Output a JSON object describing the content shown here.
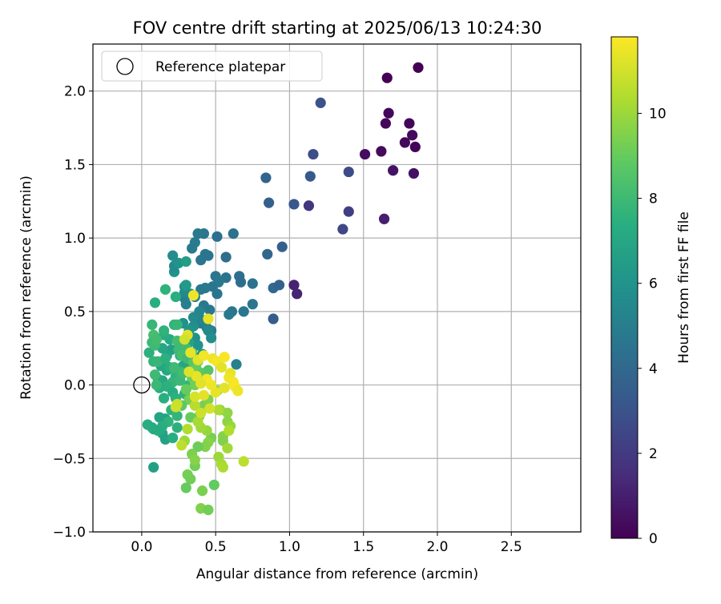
{
  "chart_data": {
    "type": "scatter",
    "title": "FOV centre drift starting at 2025/06/13 10:24:30",
    "xlabel": "Angular distance from reference (arcmin)",
    "ylabel": "Rotation from reference (arcmin)",
    "xlim": [
      -0.33,
      2.97
    ],
    "ylim": [
      -1.0,
      2.32
    ],
    "x_ticks": [
      "0.0",
      "0.5",
      "1.0",
      "1.5",
      "2.0",
      "2.5"
    ],
    "y_ticks": [
      "−1.0",
      "−0.5",
      "0.0",
      "0.5",
      "1.0",
      "1.5",
      "2.0"
    ],
    "grid": true,
    "legend": {
      "placement": "top-left",
      "entries": [
        "Reference platepar"
      ]
    },
    "reference_point": {
      "x": 0.0,
      "y": 0.0
    },
    "colorbar": {
      "label": "Hours from first FF file",
      "colormap": "viridis",
      "range": [
        0,
        11.8
      ],
      "ticks": [
        "0",
        "2",
        "4",
        "6",
        "8",
        "10"
      ]
    },
    "series": [
      {
        "points": [
          [
            1.87,
            2.16,
            0.0
          ],
          [
            1.66,
            2.09,
            0.0
          ],
          [
            1.67,
            1.85,
            0.2
          ],
          [
            1.81,
            1.78,
            0.1
          ],
          [
            1.65,
            1.78,
            0.2
          ],
          [
            1.83,
            1.7,
            0.3
          ],
          [
            1.78,
            1.65,
            0.2
          ],
          [
            1.85,
            1.62,
            0.1
          ],
          [
            1.51,
            1.57,
            0.4
          ],
          [
            1.62,
            1.59,
            0.3
          ],
          [
            1.7,
            1.46,
            0.6
          ],
          [
            1.84,
            1.44,
            0.5
          ],
          [
            1.64,
            1.13,
            1.0
          ],
          [
            1.03,
            0.68,
            1.1
          ],
          [
            1.05,
            0.62,
            1.2
          ],
          [
            1.13,
            1.22,
            1.8
          ],
          [
            1.4,
            1.18,
            2.2
          ],
          [
            1.36,
            1.06,
            2.5
          ],
          [
            1.4,
            1.45,
            2.7
          ],
          [
            1.16,
            1.57,
            2.8
          ],
          [
            1.21,
            1.92,
            3.0
          ],
          [
            1.14,
            1.42,
            3.3
          ],
          [
            1.03,
            1.23,
            3.2
          ],
          [
            0.86,
            1.24,
            3.6
          ],
          [
            0.84,
            1.41,
            3.8
          ],
          [
            0.85,
            0.89,
            3.9
          ],
          [
            0.95,
            0.94,
            3.6
          ],
          [
            0.89,
            0.66,
            4.0
          ],
          [
            0.93,
            0.68,
            3.7
          ],
          [
            0.89,
            0.45,
            3.4
          ],
          [
            0.62,
            1.03,
            4.4
          ],
          [
            0.57,
            0.87,
            4.2
          ],
          [
            0.51,
            1.01,
            4.3
          ],
          [
            0.42,
            1.03,
            4.6
          ],
          [
            0.38,
            1.03,
            4.8
          ],
          [
            0.36,
            0.97,
            4.9
          ],
          [
            0.34,
            0.93,
            4.8
          ],
          [
            0.43,
            0.89,
            4.5
          ],
          [
            0.4,
            0.85,
            4.6
          ],
          [
            0.45,
            0.88,
            4.5
          ],
          [
            0.66,
            0.74,
            4.3
          ],
          [
            0.67,
            0.7,
            4.2
          ],
          [
            0.75,
            0.69,
            4.4
          ],
          [
            0.57,
            0.73,
            4.5
          ],
          [
            0.5,
            0.74,
            4.6
          ],
          [
            0.52,
            0.7,
            4.7
          ],
          [
            0.48,
            0.67,
            4.6
          ],
          [
            0.43,
            0.66,
            4.8
          ],
          [
            0.4,
            0.65,
            4.7
          ],
          [
            0.51,
            0.62,
            4.5
          ],
          [
            0.36,
            0.6,
            4.9
          ],
          [
            0.29,
            0.59,
            5.0
          ],
          [
            0.3,
            0.55,
            5.1
          ],
          [
            0.42,
            0.54,
            4.8
          ],
          [
            0.46,
            0.51,
            4.7
          ],
          [
            0.75,
            0.55,
            4.6
          ],
          [
            0.61,
            0.5,
            4.6
          ],
          [
            0.59,
            0.48,
            4.7
          ],
          [
            0.69,
            0.5,
            4.6
          ],
          [
            0.37,
            0.45,
            5.1
          ],
          [
            0.4,
            0.42,
            5.0
          ],
          [
            0.44,
            0.39,
            5.1
          ],
          [
            0.47,
            0.37,
            4.9
          ],
          [
            0.64,
            0.14,
            5.1
          ],
          [
            0.29,
            0.63,
            5.5
          ],
          [
            0.33,
            0.62,
            5.6
          ],
          [
            0.29,
            0.67,
            5.8
          ],
          [
            0.22,
            0.77,
            5.9
          ],
          [
            0.22,
            0.81,
            5.6
          ],
          [
            0.25,
            0.83,
            6.0
          ],
          [
            0.21,
            0.88,
            5.7
          ],
          [
            0.3,
            0.84,
            6.5
          ],
          [
            0.3,
            0.68,
            6.3
          ],
          [
            0.35,
            0.46,
            5.6
          ],
          [
            0.39,
            0.5,
            5.4
          ],
          [
            0.35,
            0.4,
            5.8
          ],
          [
            0.28,
            0.42,
            5.9
          ],
          [
            0.32,
            0.37,
            6.1
          ],
          [
            0.42,
            0.44,
            5.3
          ],
          [
            0.45,
            0.37,
            5.5
          ],
          [
            0.47,
            0.32,
            5.7
          ],
          [
            0.36,
            0.32,
            5.9
          ],
          [
            0.38,
            0.27,
            6.0
          ],
          [
            0.41,
            0.21,
            6.1
          ],
          [
            0.35,
            0.14,
            6.2
          ],
          [
            0.32,
            0.11,
            6.3
          ],
          [
            0.25,
            0.29,
            6.5
          ],
          [
            0.32,
            0.29,
            6.7
          ],
          [
            0.26,
            0.2,
            6.8
          ],
          [
            0.28,
            0.13,
            6.9
          ],
          [
            0.2,
            0.24,
            6.6
          ],
          [
            0.17,
            0.2,
            6.8
          ],
          [
            0.14,
            0.25,
            7.0
          ],
          [
            0.13,
            0.13,
            6.9
          ],
          [
            0.17,
            0.1,
            7.0
          ],
          [
            0.14,
            0.03,
            6.9
          ],
          [
            0.11,
            0.04,
            7.1
          ],
          [
            0.12,
            -0.22,
            6.8
          ],
          [
            0.08,
            -0.3,
            7.0
          ],
          [
            0.16,
            -0.23,
            6.7
          ],
          [
            0.14,
            -0.33,
            6.9
          ],
          [
            0.16,
            -0.37,
            6.7
          ],
          [
            0.08,
            -0.56,
            6.6
          ],
          [
            0.19,
            0.31,
            7.2
          ],
          [
            0.15,
            0.34,
            7.3
          ],
          [
            0.15,
            0.37,
            7.6
          ],
          [
            0.07,
            0.41,
            7.8
          ],
          [
            0.05,
            0.22,
            7.5
          ],
          [
            0.07,
            0.29,
            7.9
          ],
          [
            0.09,
            0.27,
            8.0
          ],
          [
            0.08,
            0.34,
            8.2
          ],
          [
            0.1,
            0.31,
            8.1
          ],
          [
            0.08,
            0.16,
            7.7
          ],
          [
            0.11,
            0.16,
            7.8
          ],
          [
            0.16,
            0.18,
            7.5
          ],
          [
            0.19,
            0.12,
            7.4
          ],
          [
            0.23,
            0.06,
            7.6
          ],
          [
            0.26,
            0.09,
            7.8
          ],
          [
            0.21,
            0.02,
            7.7
          ],
          [
            0.17,
            -0.01,
            7.5
          ],
          [
            0.12,
            -0.02,
            7.3
          ],
          [
            0.1,
            0.0,
            7.9
          ],
          [
            0.09,
            0.07,
            8.0
          ],
          [
            0.15,
            -0.09,
            7.4
          ],
          [
            0.21,
            -0.05,
            7.3
          ],
          [
            0.23,
            -0.09,
            7.5
          ],
          [
            0.29,
            -0.06,
            7.6
          ],
          [
            0.32,
            0.0,
            7.7
          ],
          [
            0.26,
            0.03,
            7.9
          ],
          [
            0.2,
            -0.17,
            7.6
          ],
          [
            0.24,
            -0.21,
            7.7
          ],
          [
            0.18,
            -0.25,
            7.6
          ],
          [
            0.24,
            -0.29,
            7.5
          ],
          [
            0.14,
            -0.28,
            7.4
          ],
          [
            0.04,
            -0.27,
            7.3
          ],
          [
            0.07,
            -0.29,
            7.2
          ],
          [
            0.11,
            -0.31,
            7.2
          ],
          [
            0.21,
            -0.36,
            7.3
          ],
          [
            0.09,
            0.56,
            7.4
          ],
          [
            0.16,
            0.65,
            7.6
          ],
          [
            0.23,
            0.6,
            7.4
          ],
          [
            0.22,
            0.41,
            7.6
          ],
          [
            0.24,
            0.41,
            7.8
          ],
          [
            0.27,
            0.28,
            7.9
          ],
          [
            0.24,
            0.3,
            8.1
          ],
          [
            0.25,
            0.24,
            8.0
          ],
          [
            0.3,
            0.25,
            8.1
          ],
          [
            0.27,
            0.2,
            8.2
          ],
          [
            0.31,
            0.18,
            8.0
          ],
          [
            0.22,
            0.12,
            8.0
          ],
          [
            0.28,
            0.08,
            8.1
          ],
          [
            0.34,
            0.22,
            8.5
          ],
          [
            0.35,
            0.15,
            8.7
          ],
          [
            0.38,
            0.16,
            8.9
          ],
          [
            0.37,
            0.11,
            9.0
          ],
          [
            0.34,
            0.05,
            9.1
          ],
          [
            0.41,
            0.08,
            8.8
          ],
          [
            0.45,
            0.1,
            8.6
          ],
          [
            0.36,
            0.0,
            9.2
          ],
          [
            0.3,
            -0.03,
            9.0
          ],
          [
            0.32,
            -0.1,
            9.3
          ],
          [
            0.27,
            -0.14,
            8.8
          ],
          [
            0.33,
            -0.22,
            9.0
          ],
          [
            0.39,
            -0.21,
            9.1
          ],
          [
            0.42,
            -0.14,
            9.3
          ],
          [
            0.45,
            -0.1,
            9.5
          ],
          [
            0.51,
            -0.04,
            9.6
          ],
          [
            0.53,
            -0.17,
            9.4
          ],
          [
            0.58,
            -0.19,
            9.8
          ],
          [
            0.58,
            -0.25,
            9.7
          ],
          [
            0.6,
            -0.28,
            9.9
          ],
          [
            0.55,
            -0.35,
            9.6
          ],
          [
            0.55,
            -0.38,
            9.5
          ],
          [
            0.47,
            -0.36,
            9.3
          ],
          [
            0.45,
            -0.39,
            9.6
          ],
          [
            0.43,
            -0.42,
            9.5
          ],
          [
            0.38,
            -0.42,
            9.1
          ],
          [
            0.34,
            -0.47,
            9.4
          ],
          [
            0.36,
            -0.55,
            9.2
          ],
          [
            0.36,
            -0.51,
            9.6
          ],
          [
            0.31,
            -0.61,
            9.3
          ],
          [
            0.33,
            -0.64,
            9.2
          ],
          [
            0.3,
            -0.7,
            9.0
          ],
          [
            0.49,
            -0.68,
            8.9
          ],
          [
            0.41,
            -0.72,
            9.4
          ],
          [
            0.4,
            -0.84,
            9.5
          ],
          [
            0.45,
            -0.85,
            9.2
          ],
          [
            0.52,
            -0.49,
            10.0
          ],
          [
            0.54,
            -0.54,
            10.2
          ],
          [
            0.55,
            -0.56,
            10.3
          ],
          [
            0.58,
            -0.43,
            10.1
          ],
          [
            0.69,
            -0.52,
            10.6
          ],
          [
            0.59,
            -0.31,
            10.4
          ],
          [
            0.52,
            -0.17,
            10.3
          ],
          [
            0.44,
            -0.31,
            9.9
          ],
          [
            0.4,
            -0.29,
            10.1
          ],
          [
            0.38,
            -0.25,
            10.2
          ],
          [
            0.36,
            -0.14,
            10.5
          ],
          [
            0.31,
            -0.3,
            10.4
          ],
          [
            0.29,
            -0.38,
            10.0
          ],
          [
            0.27,
            -0.41,
            10.6
          ],
          [
            0.35,
            0.61,
            11.5
          ],
          [
            0.45,
            0.45,
            11.4
          ],
          [
            0.31,
            0.34,
            11.3
          ],
          [
            0.33,
            0.22,
            11.4
          ],
          [
            0.38,
            0.17,
            11.3
          ],
          [
            0.42,
            0.2,
            11.6
          ],
          [
            0.48,
            0.18,
            11.5
          ],
          [
            0.56,
            0.19,
            11.7
          ],
          [
            0.51,
            0.16,
            11.6
          ],
          [
            0.54,
            0.12,
            11.3
          ],
          [
            0.6,
            0.08,
            11.4
          ],
          [
            0.59,
            0.05,
            11.5
          ],
          [
            0.62,
            0.02,
            11.6
          ],
          [
            0.63,
            -0.01,
            11.7
          ],
          [
            0.65,
            -0.04,
            11.5
          ],
          [
            0.56,
            -0.02,
            11.3
          ],
          [
            0.5,
            -0.05,
            11.4
          ],
          [
            0.47,
            0.0,
            11.5
          ],
          [
            0.44,
            0.04,
            11.6
          ],
          [
            0.4,
            0.01,
            11.3
          ],
          [
            0.37,
            0.06,
            11.4
          ],
          [
            0.32,
            0.09,
            11.2
          ],
          [
            0.36,
            -0.08,
            11.1
          ],
          [
            0.42,
            -0.07,
            11.3
          ],
          [
            0.46,
            -0.16,
            11.0
          ],
          [
            0.4,
            -0.19,
            10.9
          ],
          [
            0.24,
            -0.13,
            10.8
          ],
          [
            0.23,
            -0.15,
            10.9
          ],
          [
            0.29,
            0.31,
            11.0
          ]
        ]
      }
    ]
  }
}
